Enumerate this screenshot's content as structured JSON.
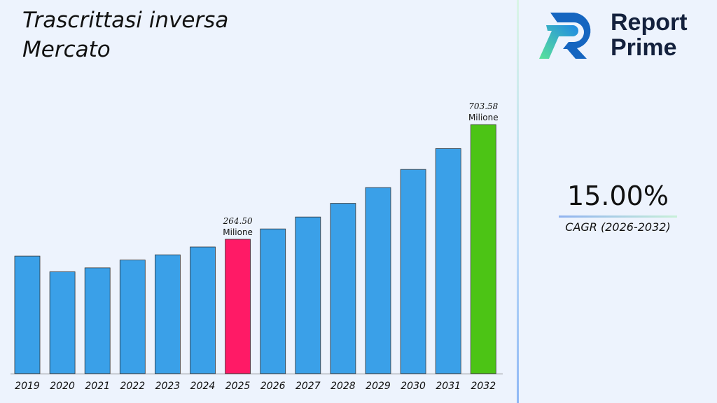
{
  "title_lines": [
    "Trascrittasi inversa",
    "Mercato"
  ],
  "brand": {
    "line1": "Report",
    "line2": "Prime"
  },
  "cagr": {
    "value": "15.00%",
    "label": "CAGR (2026-2032)"
  },
  "colors": {
    "default_bar": "#3aa0e8",
    "highlight_2025": "#ff1a66",
    "highlight_2032": "#4cc415"
  },
  "chart_data": {
    "type": "bar",
    "title": "Trascrittasi inversa Mercato",
    "categories": [
      "2019",
      "2020",
      "2021",
      "2022",
      "2023",
      "2024",
      "2025",
      "2026",
      "2027",
      "2028",
      "2029",
      "2030",
      "2031",
      "2032"
    ],
    "values": [
      200,
      140,
      155,
      185,
      205,
      235,
      264.5,
      304.18,
      349.8,
      402.27,
      462.61,
      532.0,
      611.8,
      703.58
    ],
    "data_labels": [
      {
        "category": "2025",
        "text": "264.50",
        "unit": "Milione"
      },
      {
        "category": "2032",
        "text": "703.58",
        "unit": "Milione"
      }
    ],
    "xlabel": "",
    "ylabel": "",
    "grid": false,
    "legend": "none"
  }
}
